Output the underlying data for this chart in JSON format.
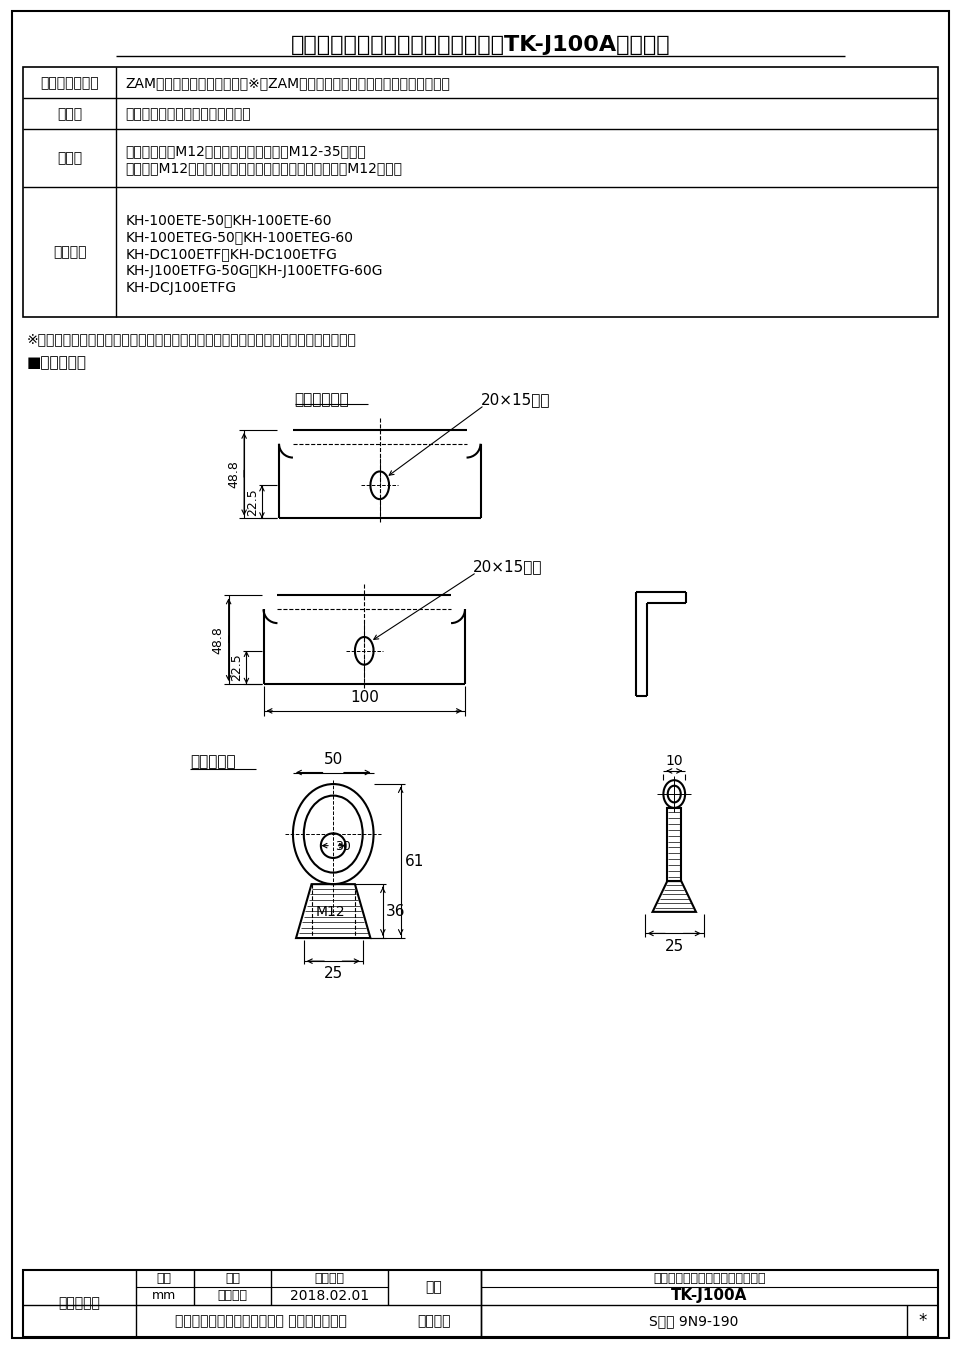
{
  "title": "農事用換気送風機　つり下げ金具（TK-J100A）仕様書",
  "bg_color": "#ffffff",
  "border_color": "#000000",
  "table_rows": [
    {
      "label": "材質、色調仕様",
      "content": "ZAM（地肌色）　　　　　　※「ZAM」は日新製鉰株式会社の登録商標です。"
    },
    {
      "label": "質　量",
      "content": "１．６ｋｇ　（４個／１セット）"
    },
    {
      "label": "付属品",
      "content": "アイナット：M12　４個　／　ボルト：M12-35　８個\nナット：M12　４個　　　／　スプリングワッシャー：M12　８個"
    },
    {
      "label": "適用機種",
      "content": "KH-100ETE-50、KH-100ETE-60\nKH-100ETEG-50、KH-100ETEG-60\nKH-DC100ETF、KH-DC100ETFG\nKH-J100ETFG-50G、KH-J100ETFG-60G\nKH-DCJ100ETFG"
    }
  ],
  "note": "※本製品の据付工事・取扱いは、取扱説明書（据付工事説明書付）に従ってください。",
  "section_label": "■外形寸法図",
  "label_tsuri": "つり下げ金具",
  "label_hole_top": "20×15長穴",
  "label_hole_side": "20×15長穴",
  "label_eyenut": "アイナット",
  "dim_488": "48.8",
  "dim_225": "22.5",
  "dim_100": "100",
  "dim_50": "50",
  "dim_61": "61",
  "dim_36": "36",
  "dim_25": "25",
  "dim_10": "10",
  "dim_30": "30",
  "label_m12": "M12",
  "footer": {
    "sankaku": "第３角図法",
    "unit_label": "単位",
    "unit_val": "mm",
    "scale_label": "尺度",
    "scale_val": "非比例尺",
    "date_label": "作成日付",
    "date_val": "2018.02.01",
    "hinmei_label": "品名",
    "hinmei_line1": "農事用換気送風機　つり下げ金具",
    "hinmei_line2": "TK-J100A",
    "company": "三菱電機グループ　株式会社 ソーワテクニカ",
    "seiri_label": "整理番号",
    "seiri_val": "Sヒン 9N9-190",
    "asterisk": "*"
  }
}
